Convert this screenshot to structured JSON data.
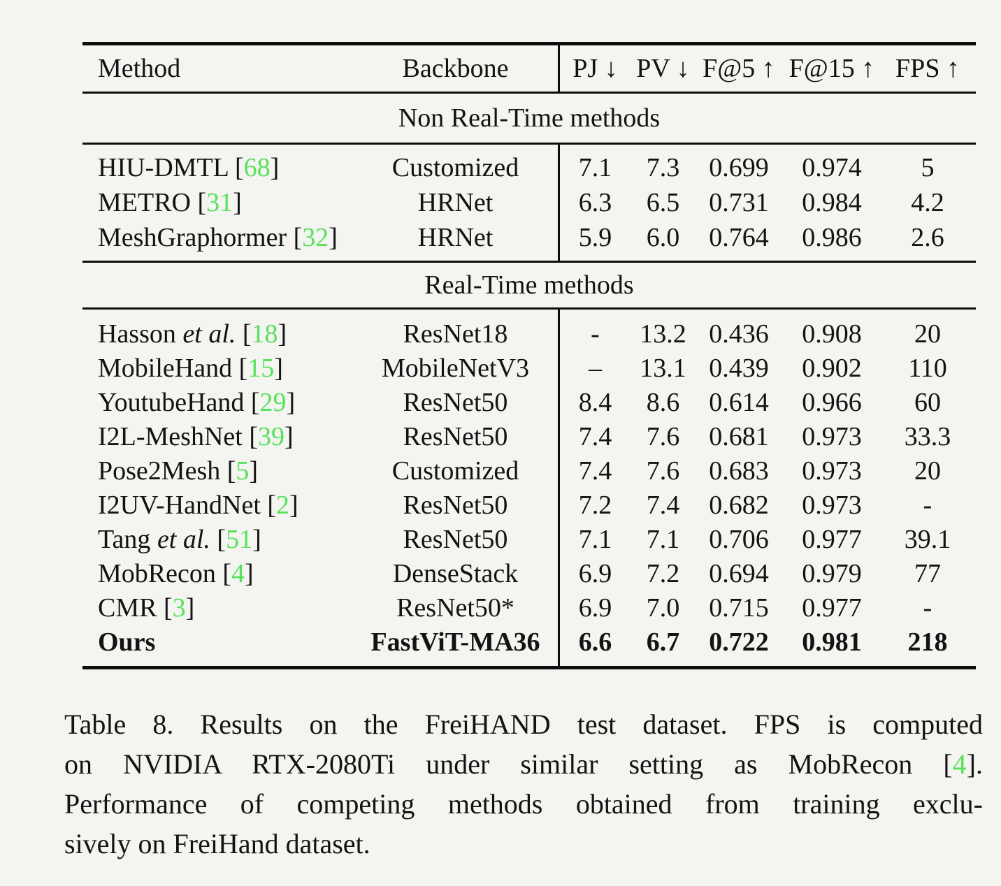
{
  "colors": {
    "citation_green": "#57e25b",
    "text": "#131313",
    "rule": "#0d0d0d",
    "background": "#f4f4f1"
  },
  "table": {
    "columns": [
      "Method",
      "Backbone",
      "PJ ↓",
      "PV ↓",
      "F@5 ↑",
      "F@15 ↑",
      "FPS ↑"
    ],
    "sections": [
      {
        "label": "Non Real-Time methods",
        "rows": [
          {
            "pre": "HIU-DMTL [",
            "cite": "68",
            "post": "]",
            "backbone": "Customized",
            "pj": "7.1",
            "pv": "7.3",
            "f5": "0.699",
            "f15": "0.974",
            "fps": "5"
          },
          {
            "pre": "METRO [",
            "cite": "31",
            "post": "]",
            "backbone": "HRNet",
            "pj": "6.3",
            "pv": "6.5",
            "f5": "0.731",
            "f15": "0.984",
            "fps": "4.2"
          },
          {
            "pre": "MeshGraphormer [",
            "cite": "32",
            "post": "]",
            "backbone": "HRNet",
            "pj": "5.9",
            "pv": "6.0",
            "f5": "0.764",
            "f15": "0.986",
            "fps": "2.6"
          }
        ]
      },
      {
        "label": "Real-Time methods",
        "rows": [
          {
            "pre": "Hasson ",
            "etal": "et al.",
            "mid": " [",
            "cite": "18",
            "post": "]",
            "backbone": "ResNet18",
            "pj": "-",
            "pv": "13.2",
            "f5": "0.436",
            "f15": "0.908",
            "fps": "20"
          },
          {
            "pre": "MobileHand [",
            "cite": "15",
            "post": "]",
            "backbone": "MobileNetV3",
            "pj": "–",
            "pv": "13.1",
            "f5": "0.439",
            "f15": "0.902",
            "fps": "110"
          },
          {
            "pre": "YoutubeHand [",
            "cite": "29",
            "post": "]",
            "backbone": "ResNet50",
            "pj": "8.4",
            "pv": "8.6",
            "f5": "0.614",
            "f15": "0.966",
            "fps": "60"
          },
          {
            "pre": "I2L-MeshNet [",
            "cite": "39",
            "post": "]",
            "backbone": "ResNet50",
            "pj": "7.4",
            "pv": "7.6",
            "f5": "0.681",
            "f15": "0.973",
            "fps": "33.3"
          },
          {
            "pre": "Pose2Mesh [",
            "cite": "5",
            "post": "]",
            "backbone": "Customized",
            "pj": "7.4",
            "pv": "7.6",
            "f5": "0.683",
            "f15": "0.973",
            "fps": "20"
          },
          {
            "pre": "I2UV-HandNet [",
            "cite": "2",
            "post": "]",
            "backbone": "ResNet50",
            "pj": "7.2",
            "pv": "7.4",
            "f5": "0.682",
            "f15": "0.973",
            "fps": "-"
          },
          {
            "pre": "Tang ",
            "etal": "et al.",
            "mid": " [",
            "cite": "51",
            "post": "]",
            "backbone": "ResNet50",
            "pj": "7.1",
            "pv": "7.1",
            "f5": "0.706",
            "f15": "0.977",
            "fps": "39.1"
          },
          {
            "pre": "MobRecon [",
            "cite": "4",
            "post": "]",
            "backbone": "DenseStack",
            "pj": "6.9",
            "pv": "7.2",
            "f5": "0.694",
            "f15": "0.979",
            "fps": "77"
          },
          {
            "pre": "CMR [",
            "cite": "3",
            "post": "]",
            "backbone": "ResNet50*",
            "pj": "6.9",
            "pv": "7.0",
            "f5": "0.715",
            "f15": "0.977",
            "fps": "-"
          },
          {
            "pre": "Ours",
            "backbone": "FastViT-MA36",
            "pj": "6.6",
            "pv": "6.7",
            "f5": "0.722",
            "f15": "0.981",
            "fps": "218",
            "bold": true
          }
        ]
      }
    ]
  },
  "caption": {
    "line1": "Table 8.  Results on the FreiHAND test dataset.  FPS is computed",
    "line2_pre": "on NVIDIA RTX-2080Ti under similar setting as MobRecon [",
    "line2_cite": "4",
    "line2_post": "].",
    "line3": "Performance of competing methods obtained from training exclu-",
    "line4": "sively on FreiHand dataset."
  }
}
